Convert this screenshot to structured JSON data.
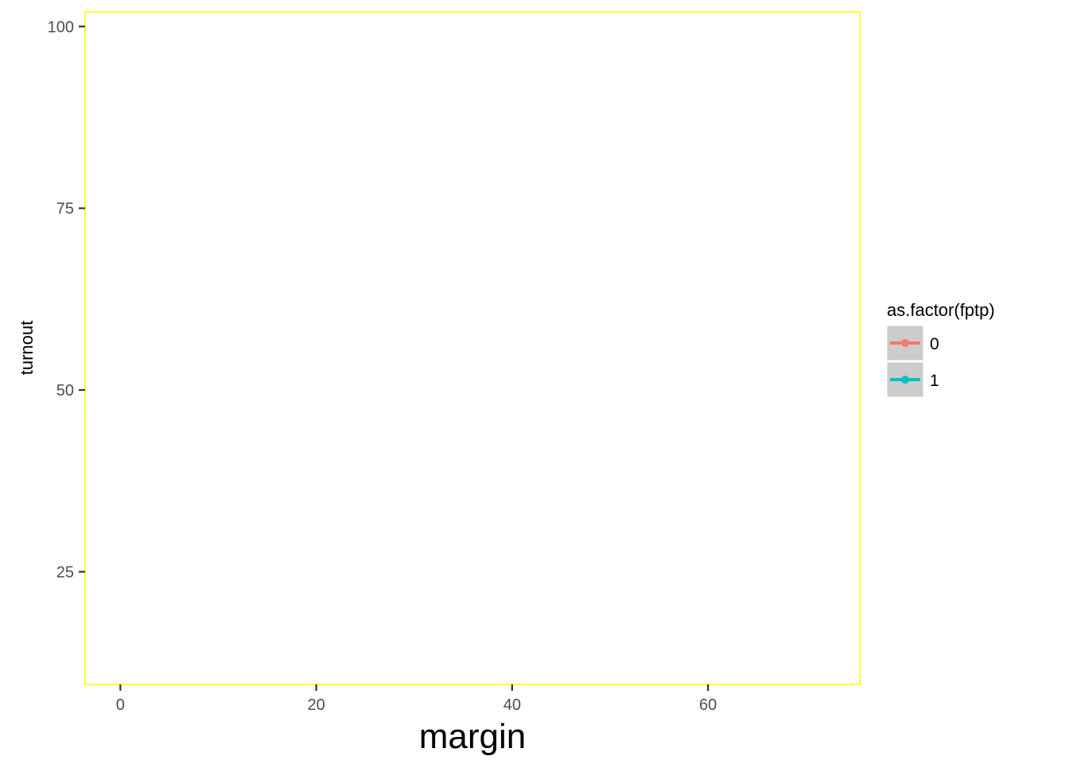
{
  "chart_data": {
    "type": "line",
    "title": "",
    "xlabel": "margin",
    "ylabel": "turnout",
    "xlim": [
      -3.6,
      75.5
    ],
    "ylim": [
      9.5,
      102
    ],
    "x_ticks": [
      0,
      20,
      40,
      60
    ],
    "y_ticks": [
      25,
      50,
      75,
      100
    ],
    "x_tick_labels": [
      "0",
      "20",
      "40",
      "60"
    ],
    "y_tick_labels": [
      "25",
      "50",
      "75",
      "100"
    ],
    "grid": false,
    "panel_border_color": "#ffff00",
    "legend": {
      "title": "as.factor(fptp)",
      "position": "right",
      "key_background": "#cccccc",
      "entries": [
        {
          "label": "0",
          "color": "#f8766d"
        },
        {
          "label": "1",
          "color": "#00bfc4"
        }
      ]
    },
    "series": [
      {
        "name": "0",
        "color": "#f8766d",
        "x": [],
        "y": []
      },
      {
        "name": "1",
        "color": "#00bfc4",
        "x": [],
        "y": []
      }
    ]
  }
}
